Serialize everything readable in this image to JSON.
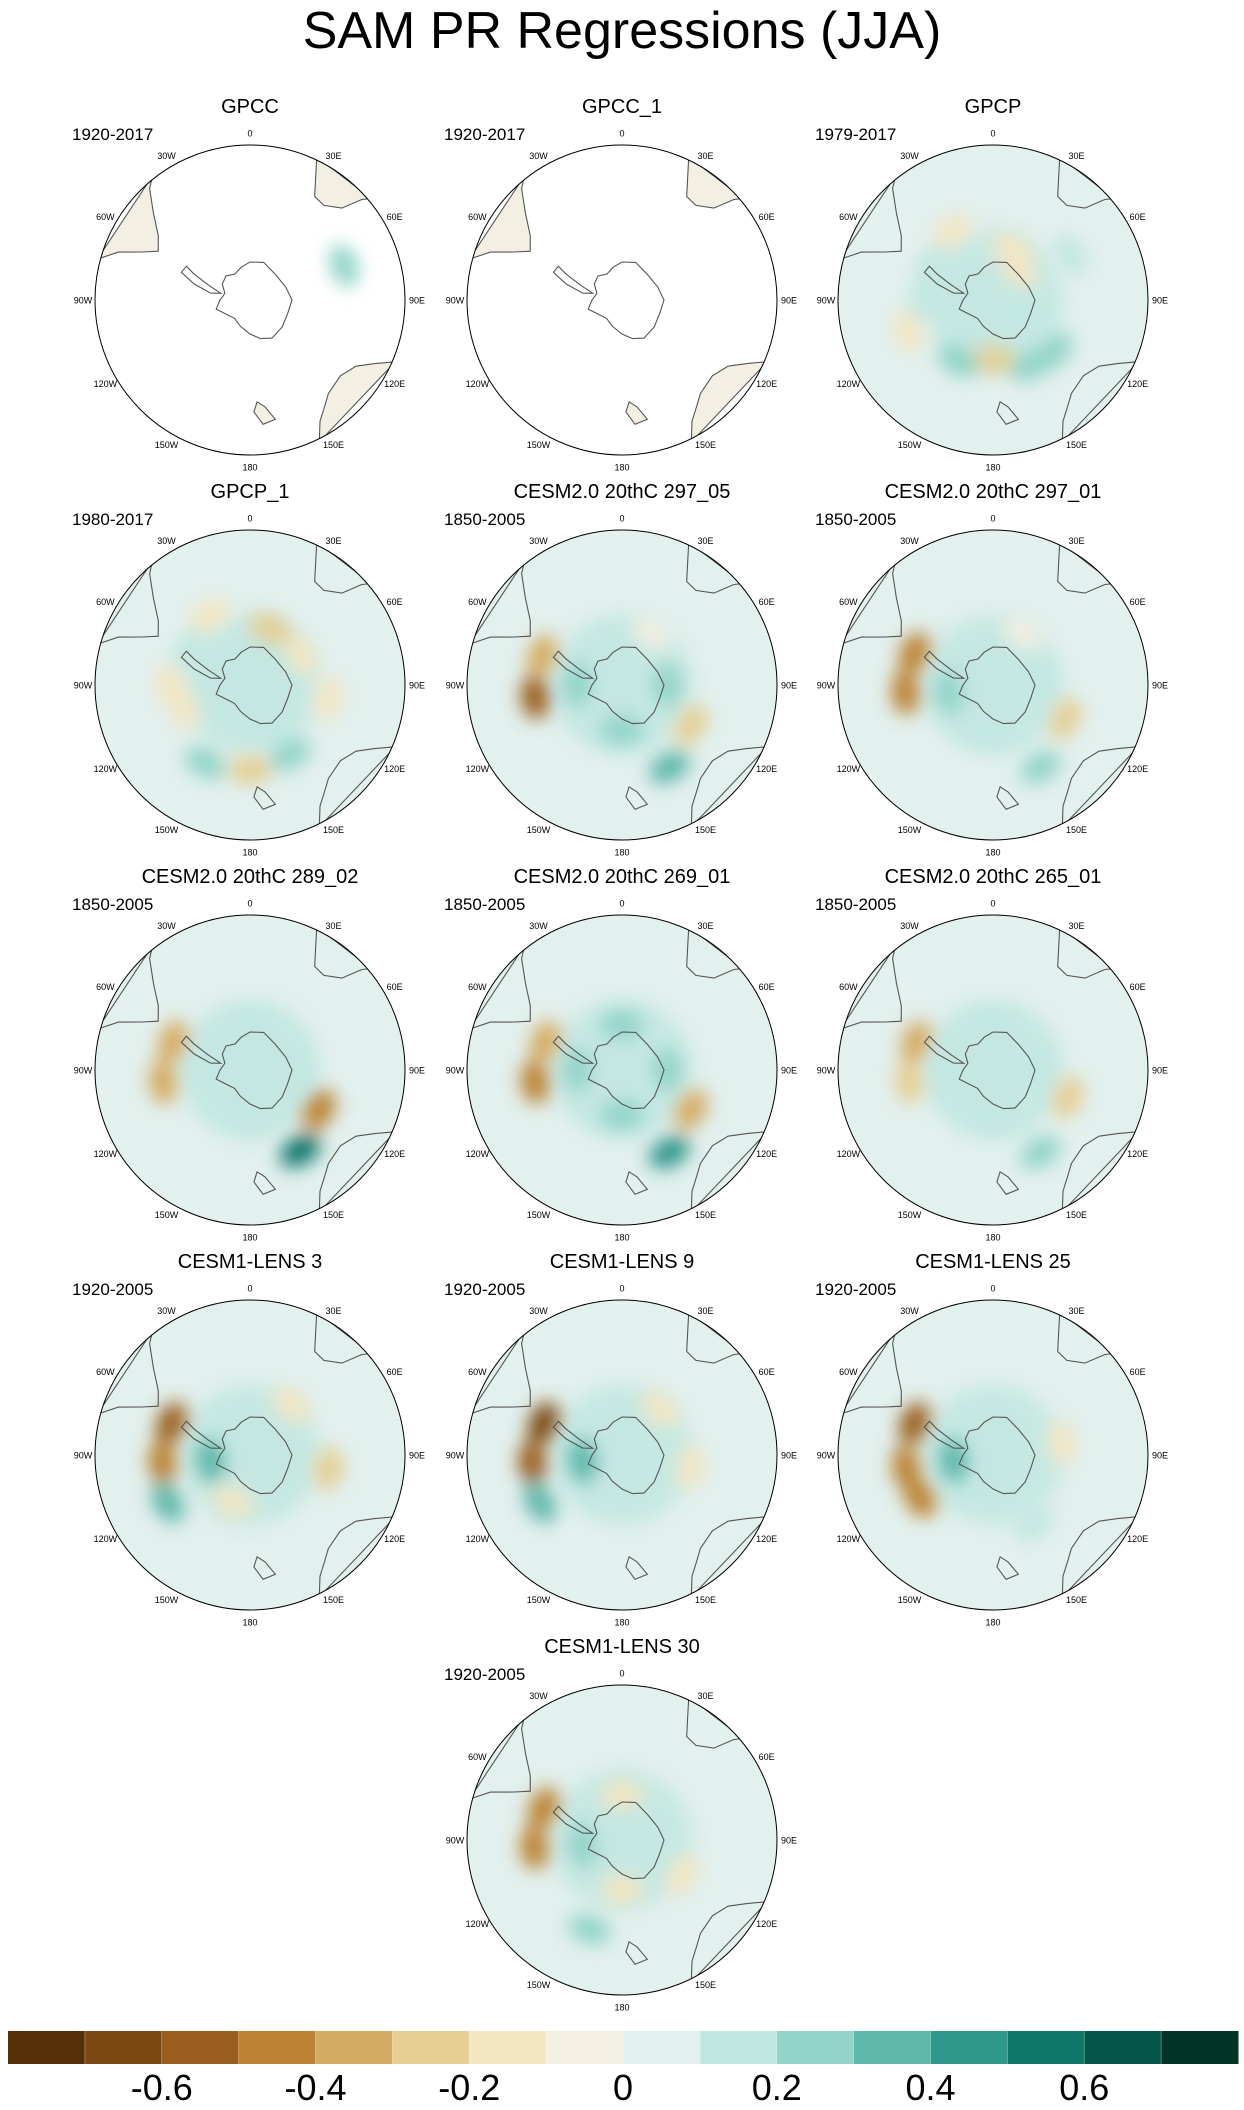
{
  "title": "SAM PR Regressions (JJA)",
  "colors": {
    "colorbar": [
      "#553006",
      "#7a4810",
      "#9a5e1e",
      "#bb8233",
      "#d4ab62",
      "#e5cf94",
      "#f3e6c3",
      "#f3efe2",
      "#e2f0ee",
      "#c2e7e1",
      "#92d4c8",
      "#5fb8aa",
      "#2f978b",
      "#11766a",
      "#045548",
      "#023528"
    ],
    "land_outline": "#555555",
    "circle": "#000000"
  },
  "longitude_labels": [
    "0",
    "30E",
    "60E",
    "90E",
    "120E",
    "150E",
    "180",
    "150W",
    "120W",
    "90W",
    "60W",
    "30W"
  ],
  "chart_data": {
    "type": "heatmap",
    "title": "SAM PR Regressions (JJA)",
    "projection": "south polar stereographic",
    "colorbar": {
      "levels": [
        -0.7,
        -0.6,
        -0.5,
        -0.4,
        -0.3,
        -0.2,
        -0.1,
        0,
        0.1,
        0.2,
        0.3,
        0.4,
        0.5,
        0.6,
        0.7
      ],
      "labels": [
        "-0.6",
        "-0.4",
        "-0.2",
        "0",
        "0.2",
        "0.4",
        "0.6"
      ],
      "label_values": [
        -0.6,
        -0.4,
        -0.2,
        0,
        0.2,
        0.4,
        0.6
      ]
    },
    "panels": [
      {
        "title": "GPCC",
        "period": "1920-2017",
        "land_only": true,
        "features": [
          [
            70,
            100,
            0.25
          ]
        ]
      },
      {
        "title": "GPCC_1",
        "period": "1920-2017",
        "land_only": true,
        "features": []
      },
      {
        "title": "GPCP",
        "period": "1979-2017",
        "land_only": false,
        "features": [
          [
            20,
            55,
            -0.2
          ],
          [
            40,
            40,
            -0.15
          ],
          [
            60,
            90,
            0.15
          ],
          [
            110,
            30,
            0.1
          ],
          [
            130,
            80,
            0.2
          ],
          [
            150,
            75,
            0.25
          ],
          [
            180,
            60,
            -0.25
          ],
          [
            210,
            70,
            0.2
          ],
          [
            250,
            90,
            -0.15
          ],
          [
            270,
            70,
            0.15
          ],
          [
            300,
            70,
            0.1
          ],
          [
            330,
            80,
            -0.15
          ]
        ]
      },
      {
        "title": "GPCP_1",
        "period": "1980-2017",
        "land_only": false,
        "features": [
          [
            20,
            60,
            -0.25
          ],
          [
            60,
            60,
            -0.15
          ],
          [
            100,
            80,
            -0.2
          ],
          [
            150,
            80,
            0.2
          ],
          [
            180,
            85,
            -0.3
          ],
          [
            210,
            90,
            0.25
          ],
          [
            250,
            70,
            -0.2
          ],
          [
            270,
            80,
            -0.2
          ],
          [
            300,
            70,
            0.15
          ],
          [
            330,
            80,
            -0.15
          ]
        ]
      },
      {
        "title": "CESM2.0 20thC 297_05",
        "period": "1850-2005",
        "land_only": false,
        "features": [
          [
            262,
            88,
            -0.55
          ],
          [
            290,
            85,
            -0.4
          ],
          [
            0,
            45,
            0.15
          ],
          [
            90,
            45,
            0.2
          ],
          [
            180,
            45,
            0.2
          ],
          [
            270,
            45,
            0.2
          ],
          [
            120,
            80,
            -0.3
          ],
          [
            150,
            95,
            0.3
          ],
          [
            30,
            60,
            -0.1
          ]
        ]
      },
      {
        "title": "CESM2.0 20thC 297_01",
        "period": "1850-2005",
        "land_only": false,
        "features": [
          [
            265,
            88,
            -0.45
          ],
          [
            292,
            85,
            -0.5
          ],
          [
            260,
            45,
            0.25
          ],
          [
            90,
            45,
            0.15
          ],
          [
            180,
            45,
            0.15
          ],
          [
            115,
            80,
            -0.25
          ],
          [
            150,
            95,
            0.25
          ],
          [
            30,
            60,
            -0.1
          ]
        ]
      },
      {
        "title": "CESM2.0 20thC 289_02",
        "period": "1850-2005",
        "land_only": false,
        "features": [
          [
            262,
            88,
            -0.4
          ],
          [
            290,
            82,
            -0.35
          ],
          [
            0,
            45,
            0.15
          ],
          [
            90,
            45,
            0.15
          ],
          [
            180,
            45,
            0.15
          ],
          [
            270,
            45,
            0.15
          ],
          [
            120,
            80,
            -0.45
          ],
          [
            148,
            95,
            0.55
          ]
        ]
      },
      {
        "title": "CESM2.0 20thC 269_01",
        "period": "1850-2005",
        "land_only": false,
        "features": [
          [
            262,
            88,
            -0.45
          ],
          [
            290,
            82,
            -0.35
          ],
          [
            0,
            45,
            0.2
          ],
          [
            90,
            45,
            0.2
          ],
          [
            180,
            45,
            0.2
          ],
          [
            270,
            45,
            0.2
          ],
          [
            120,
            80,
            -0.4
          ],
          [
            150,
            95,
            0.45
          ]
        ]
      },
      {
        "title": "CESM2.0 20thC 265_01",
        "period": "1850-2005",
        "land_only": false,
        "features": [
          [
            262,
            85,
            -0.3
          ],
          [
            290,
            82,
            -0.4
          ],
          [
            0,
            45,
            0.1
          ],
          [
            90,
            45,
            0.15
          ],
          [
            180,
            45,
            0.15
          ],
          [
            270,
            45,
            0.15
          ],
          [
            110,
            80,
            -0.3
          ],
          [
            150,
            95,
            0.25
          ]
        ]
      },
      {
        "title": "CESM1-LENS 3",
        "period": "1920-2005",
        "land_only": false,
        "features": [
          [
            265,
            88,
            -0.5
          ],
          [
            292,
            85,
            -0.55
          ],
          [
            262,
            40,
            0.3
          ],
          [
            240,
            95,
            0.3
          ],
          [
            100,
            80,
            -0.25
          ],
          [
            40,
            65,
            -0.2
          ],
          [
            200,
            50,
            -0.15
          ]
        ]
      },
      {
        "title": "CESM1-LENS 9",
        "period": "1920-2005",
        "land_only": false,
        "features": [
          [
            265,
            90,
            -0.6
          ],
          [
            292,
            85,
            -0.65
          ],
          [
            262,
            40,
            0.35
          ],
          [
            240,
            95,
            0.35
          ],
          [
            100,
            70,
            -0.15
          ],
          [
            40,
            60,
            -0.15
          ]
        ]
      },
      {
        "title": "CESM1-LENS 25",
        "period": "1920-2005",
        "land_only": false,
        "features": [
          [
            262,
            88,
            -0.5
          ],
          [
            292,
            85,
            -0.55
          ],
          [
            240,
            85,
            -0.45
          ],
          [
            262,
            40,
            0.3
          ],
          [
            80,
            70,
            -0.15
          ],
          [
            150,
            80,
            0.15
          ]
        ]
      },
      {
        "title": "CESM1-LENS 30",
        "period": "1920-2005",
        "land_only": false,
        "features": [
          [
            265,
            88,
            -0.45
          ],
          [
            292,
            85,
            -0.5
          ],
          [
            262,
            40,
            0.25
          ],
          [
            200,
            95,
            0.25
          ],
          [
            0,
            45,
            -0.2
          ],
          [
            120,
            70,
            -0.15
          ],
          [
            180,
            50,
            -0.15
          ]
        ]
      }
    ]
  }
}
